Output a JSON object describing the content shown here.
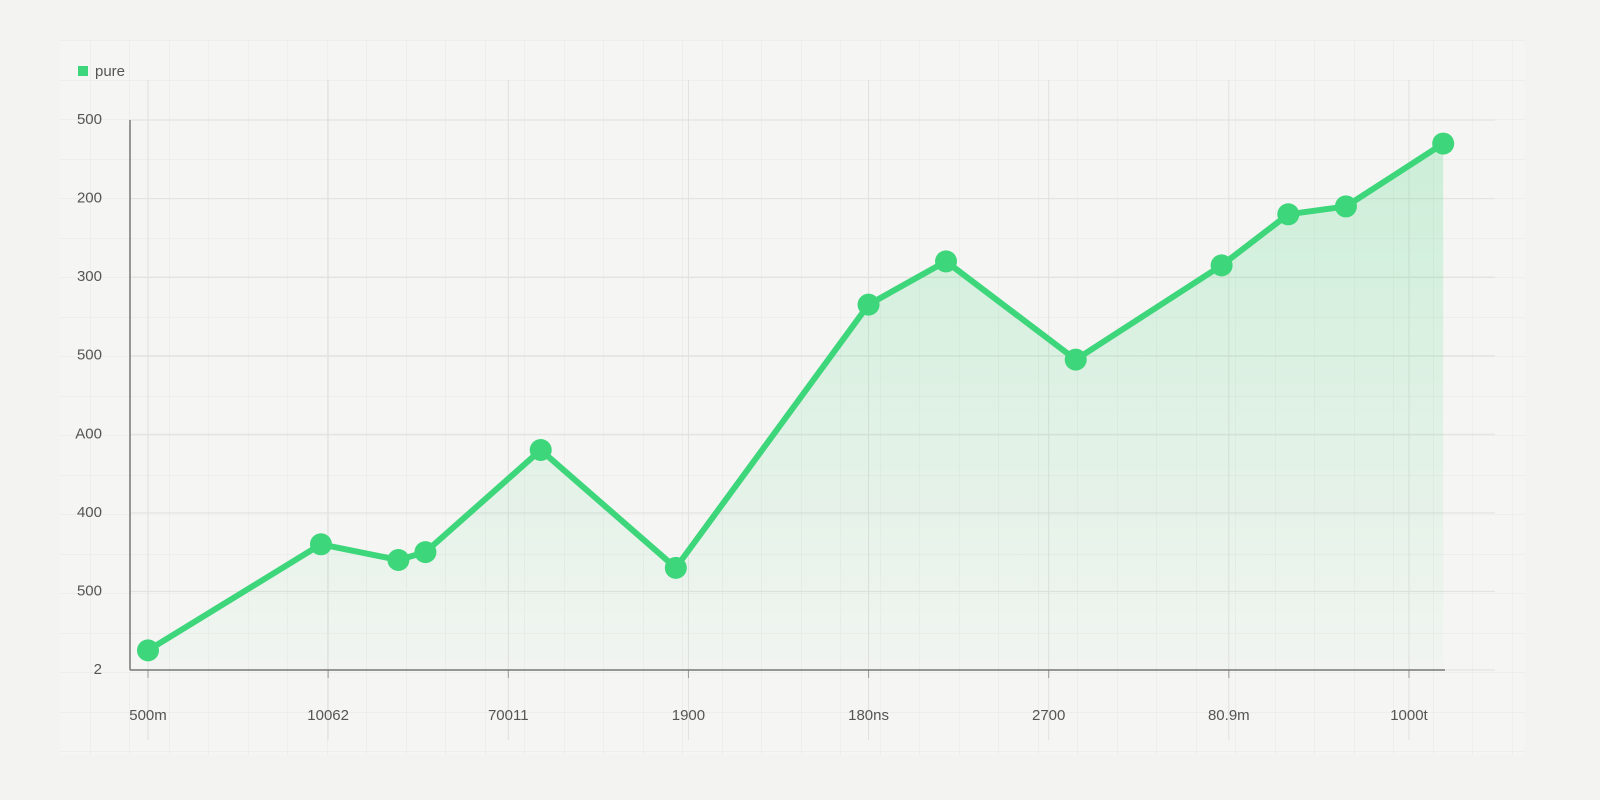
{
  "chart_data": {
    "type": "line",
    "legend_position": "upper left",
    "grid": true,
    "area": true,
    "x": [
      0,
      0.96,
      1.39,
      1.54,
      2.18,
      2.93,
      4.0,
      4.43,
      5.15,
      5.96,
      6.33,
      6.65,
      7.19
    ],
    "xlim": [
      -0.1,
      7.2
    ],
    "xticks": [
      {
        "value": 0,
        "label": "500m"
      },
      {
        "value": 1,
        "label": "10062"
      },
      {
        "value": 2,
        "label": "70011"
      },
      {
        "value": 3,
        "label": "1900"
      },
      {
        "value": 4,
        "label": "180ns"
      },
      {
        "value": 5,
        "label": "2700"
      },
      {
        "value": 6,
        "label": "80.9m"
      },
      {
        "value": 7,
        "label": "1000t"
      }
    ],
    "ylim": [
      0,
      7
    ],
    "yticks": [
      {
        "value": 0,
        "label": "2"
      },
      {
        "value": 1,
        "label": "500"
      },
      {
        "value": 2,
        "label": "400"
      },
      {
        "value": 3,
        "label": "A00"
      },
      {
        "value": 4,
        "label": "500"
      },
      {
        "value": 5,
        "label": "300"
      },
      {
        "value": 6,
        "label": "200"
      },
      {
        "value": 7,
        "label": "500"
      }
    ],
    "series": [
      {
        "name": "pure",
        "color": "#3dd67a",
        "values": [
          0.25,
          1.6,
          1.4,
          1.5,
          2.8,
          1.3,
          4.65,
          5.2,
          3.95,
          5.15,
          5.8,
          5.9,
          6.7
        ]
      }
    ]
  }
}
